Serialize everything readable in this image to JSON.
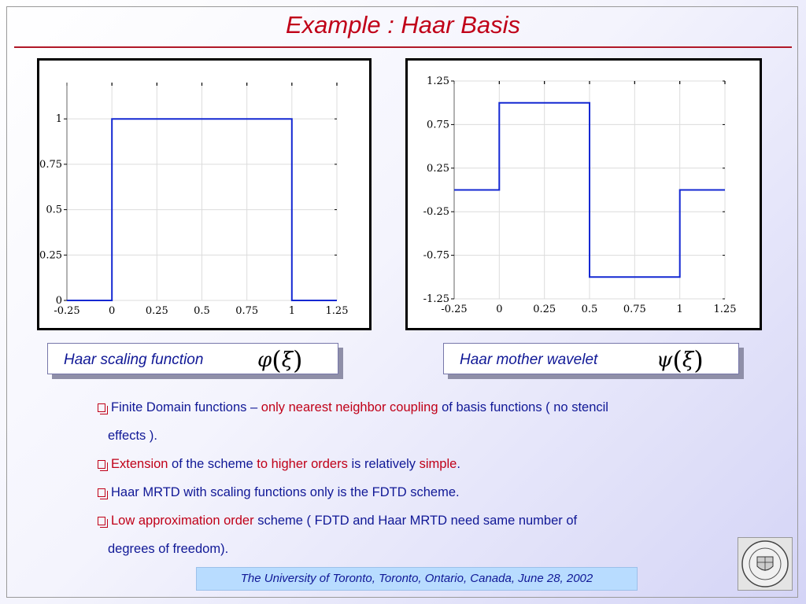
{
  "slide": {
    "title": "Example : Haar Basis"
  },
  "captions": {
    "left_text": "Haar scaling function",
    "left_symbol_func": "φ",
    "left_symbol_arg": "ξ",
    "right_text": "Haar mother wavelet",
    "right_symbol_func": "ψ",
    "right_symbol_arg": "ξ"
  },
  "bullets": [
    {
      "line1": [
        {
          "text": "Finite Domain functions – ",
          "color": "blue"
        },
        {
          "text": "only nearest neighbor coupling",
          "color": "red"
        },
        {
          "text": " of basis functions ( no  stencil",
          "color": "blue"
        }
      ],
      "line2": "effects )."
    },
    {
      "line1": [
        {
          "text": "Extension",
          "color": "red"
        },
        {
          "text": " of the scheme ",
          "color": "blue"
        },
        {
          "text": "to higher orders",
          "color": "red"
        },
        {
          "text": " is relatively ",
          "color": "blue"
        },
        {
          "text": "simple",
          "color": "red"
        },
        {
          "text": ".",
          "color": "blue"
        }
      ]
    },
    {
      "line1": [
        {
          "text": "Haar MRTD with scaling functions only is the FDTD scheme.",
          "color": "blue"
        }
      ]
    },
    {
      "line1": [
        {
          "text": "Low approximation order",
          "color": "red"
        },
        {
          "text": " scheme ( FDTD and Haar MRTD  need same number of",
          "color": "blue"
        }
      ],
      "line2": "degrees of freedom)."
    }
  ],
  "colors": {
    "title": "#c00018",
    "body_text": "#101896",
    "highlight": "#c00018",
    "plot_line": "#1428d2",
    "footer_bg": "#b8dcff"
  },
  "footer": {
    "text": "The University of Toronto, Toronto, Ontario, Canada, June 28, 2002"
  },
  "logo": {
    "icon": "university-seal-icon"
  },
  "chart_data": [
    {
      "type": "line",
      "title": "",
      "x": [
        -0.25,
        0,
        0,
        1,
        1,
        1.25
      ],
      "y": [
        0,
        0,
        1,
        1,
        0,
        0
      ],
      "xlim": [
        -0.25,
        1.25
      ],
      "ylim": [
        0,
        1.2
      ],
      "xticks": [
        -0.25,
        0,
        0.25,
        0.5,
        0.75,
        1,
        1.25
      ],
      "xtick_labels": [
        "-0.25",
        "0",
        "0.25",
        "0.5",
        "0.75",
        "1",
        "1.25"
      ],
      "yticks": [
        0,
        0.25,
        0.5,
        0.75,
        1
      ],
      "ytick_labels": [
        "0",
        "0.25",
        "0.5",
        "0.75",
        "1"
      ],
      "grid": true
    },
    {
      "type": "line",
      "title": "",
      "x": [
        -0.25,
        0,
        0,
        0.5,
        0.5,
        1,
        1,
        1.25
      ],
      "y": [
        0,
        0,
        1,
        1,
        -1,
        -1,
        0,
        0
      ],
      "xlim": [
        -0.25,
        1.25
      ],
      "ylim": [
        -1.25,
        1.25
      ],
      "xticks": [
        -0.25,
        0,
        0.25,
        0.5,
        0.75,
        1,
        1.25
      ],
      "xtick_labels": [
        "-0.25",
        "0",
        "0.25",
        "0.5",
        "0.75",
        "1",
        "1.25"
      ],
      "yticks": [
        -1.25,
        -0.75,
        -0.25,
        0.25,
        0.75,
        1.25
      ],
      "ytick_labels": [
        "-1.25",
        "-0.75",
        "-0.25",
        "0.25",
        "0.75",
        "1.25"
      ],
      "grid": true
    }
  ]
}
